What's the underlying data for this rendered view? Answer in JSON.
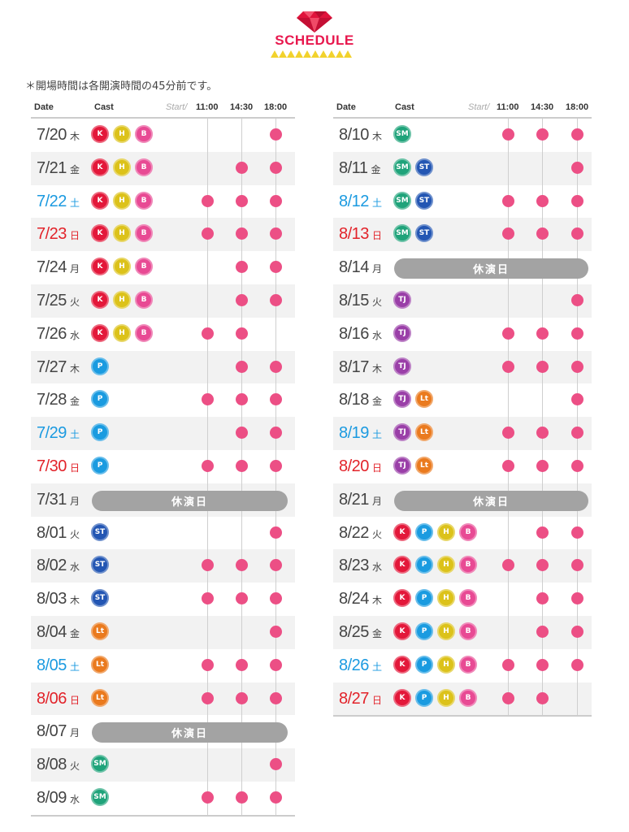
{
  "header": {
    "title": "SCHEDULE",
    "note": "＊開場時間は各開演時間の45分前です。"
  },
  "colors": {
    "K": "#e3183a",
    "H": "#dcc21a",
    "B": "#e84a94",
    "P": "#1a9be0",
    "ST": "#2356b3",
    "SM": "#1fa37a",
    "Lt": "#ea7a1e",
    "TJ": "#9a3fa8",
    "dot": "#ec4f85",
    "sat": "#1b9ae0",
    "sun": "#e2232a",
    "closed": "#a3a3a3"
  },
  "labels": {
    "date": "Date",
    "cast": "Cast",
    "start": "Start/",
    "t1": "11:00",
    "t2": "14:30",
    "t3": "18:00",
    "closed": "休演日"
  },
  "left_rows": [
    {
      "date": "7/20",
      "dow": "木",
      "type": "",
      "cast": [
        "K",
        "H",
        "B"
      ],
      "shows": [
        0,
        0,
        1
      ]
    },
    {
      "date": "7/21",
      "dow": "金",
      "type": "",
      "cast": [
        "K",
        "H",
        "B"
      ],
      "shows": [
        0,
        1,
        1
      ]
    },
    {
      "date": "7/22",
      "dow": "土",
      "type": "sat",
      "cast": [
        "K",
        "H",
        "B"
      ],
      "shows": [
        1,
        1,
        1
      ]
    },
    {
      "date": "7/23",
      "dow": "日",
      "type": "sun",
      "cast": [
        "K",
        "H",
        "B"
      ],
      "shows": [
        1,
        1,
        1
      ]
    },
    {
      "date": "7/24",
      "dow": "月",
      "type": "",
      "cast": [
        "K",
        "H",
        "B"
      ],
      "shows": [
        0,
        1,
        1
      ]
    },
    {
      "date": "7/25",
      "dow": "火",
      "type": "",
      "cast": [
        "K",
        "H",
        "B"
      ],
      "shows": [
        0,
        1,
        1
      ]
    },
    {
      "date": "7/26",
      "dow": "水",
      "type": "",
      "cast": [
        "K",
        "H",
        "B"
      ],
      "shows": [
        1,
        1,
        0
      ]
    },
    {
      "date": "7/27",
      "dow": "木",
      "type": "",
      "cast": [
        "P"
      ],
      "shows": [
        0,
        1,
        1
      ]
    },
    {
      "date": "7/28",
      "dow": "金",
      "type": "",
      "cast": [
        "P"
      ],
      "shows": [
        1,
        1,
        1
      ]
    },
    {
      "date": "7/29",
      "dow": "土",
      "type": "sat",
      "cast": [
        "P"
      ],
      "shows": [
        0,
        1,
        1
      ]
    },
    {
      "date": "7/30",
      "dow": "日",
      "type": "sun",
      "cast": [
        "P"
      ],
      "shows": [
        1,
        1,
        1
      ]
    },
    {
      "date": "7/31",
      "dow": "月",
      "type": "",
      "closed": true
    },
    {
      "date": "8/01",
      "dow": "火",
      "type": "",
      "cast": [
        "ST"
      ],
      "shows": [
        0,
        0,
        1
      ]
    },
    {
      "date": "8/02",
      "dow": "水",
      "type": "",
      "cast": [
        "ST"
      ],
      "shows": [
        1,
        1,
        1
      ]
    },
    {
      "date": "8/03",
      "dow": "木",
      "type": "",
      "cast": [
        "ST"
      ],
      "shows": [
        1,
        1,
        1
      ]
    },
    {
      "date": "8/04",
      "dow": "金",
      "type": "",
      "cast": [
        "Lt"
      ],
      "shows": [
        0,
        0,
        1
      ]
    },
    {
      "date": "8/05",
      "dow": "土",
      "type": "sat",
      "cast": [
        "Lt"
      ],
      "shows": [
        1,
        1,
        1
      ]
    },
    {
      "date": "8/06",
      "dow": "日",
      "type": "sun",
      "cast": [
        "Lt"
      ],
      "shows": [
        1,
        1,
        1
      ]
    },
    {
      "date": "8/07",
      "dow": "月",
      "type": "",
      "closed": true
    },
    {
      "date": "8/08",
      "dow": "火",
      "type": "",
      "cast": [
        "SM"
      ],
      "shows": [
        0,
        0,
        1
      ]
    },
    {
      "date": "8/09",
      "dow": "水",
      "type": "",
      "cast": [
        "SM"
      ],
      "shows": [
        1,
        1,
        1
      ]
    }
  ],
  "right_rows": [
    {
      "date": "8/10",
      "dow": "木",
      "type": "",
      "cast": [
        "SM"
      ],
      "shows": [
        1,
        1,
        1
      ]
    },
    {
      "date": "8/11",
      "dow": "金",
      "type": "",
      "cast": [
        "SM",
        "ST"
      ],
      "shows": [
        0,
        0,
        1
      ]
    },
    {
      "date": "8/12",
      "dow": "土",
      "type": "sat",
      "cast": [
        "SM",
        "ST"
      ],
      "shows": [
        1,
        1,
        1
      ]
    },
    {
      "date": "8/13",
      "dow": "日",
      "type": "sun",
      "cast": [
        "SM",
        "ST"
      ],
      "shows": [
        1,
        1,
        1
      ]
    },
    {
      "date": "8/14",
      "dow": "月",
      "type": "",
      "closed": true
    },
    {
      "date": "8/15",
      "dow": "火",
      "type": "",
      "cast": [
        "TJ"
      ],
      "shows": [
        0,
        0,
        1
      ]
    },
    {
      "date": "8/16",
      "dow": "水",
      "type": "",
      "cast": [
        "TJ"
      ],
      "shows": [
        1,
        1,
        1
      ]
    },
    {
      "date": "8/17",
      "dow": "木",
      "type": "",
      "cast": [
        "TJ"
      ],
      "shows": [
        1,
        1,
        1
      ]
    },
    {
      "date": "8/18",
      "dow": "金",
      "type": "",
      "cast": [
        "TJ",
        "Lt"
      ],
      "shows": [
        0,
        0,
        1
      ]
    },
    {
      "date": "8/19",
      "dow": "土",
      "type": "sat",
      "cast": [
        "TJ",
        "Lt"
      ],
      "shows": [
        1,
        1,
        1
      ]
    },
    {
      "date": "8/20",
      "dow": "日",
      "type": "sun",
      "cast": [
        "TJ",
        "Lt"
      ],
      "shows": [
        1,
        1,
        1
      ]
    },
    {
      "date": "8/21",
      "dow": "月",
      "type": "",
      "closed": true
    },
    {
      "date": "8/22",
      "dow": "火",
      "type": "",
      "cast": [
        "K",
        "P",
        "H",
        "B"
      ],
      "shows": [
        0,
        1,
        1
      ]
    },
    {
      "date": "8/23",
      "dow": "水",
      "type": "",
      "cast": [
        "K",
        "P",
        "H",
        "B"
      ],
      "shows": [
        1,
        1,
        1
      ]
    },
    {
      "date": "8/24",
      "dow": "木",
      "type": "",
      "cast": [
        "K",
        "P",
        "H",
        "B"
      ],
      "shows": [
        0,
        1,
        1
      ]
    },
    {
      "date": "8/25",
      "dow": "金",
      "type": "",
      "cast": [
        "K",
        "P",
        "H",
        "B"
      ],
      "shows": [
        0,
        1,
        1
      ]
    },
    {
      "date": "8/26",
      "dow": "土",
      "type": "sat",
      "cast": [
        "K",
        "P",
        "H",
        "B"
      ],
      "shows": [
        1,
        1,
        1
      ]
    },
    {
      "date": "8/27",
      "dow": "日",
      "type": "sun",
      "cast": [
        "K",
        "P",
        "H",
        "B"
      ],
      "shows": [
        1,
        1,
        0
      ]
    }
  ]
}
